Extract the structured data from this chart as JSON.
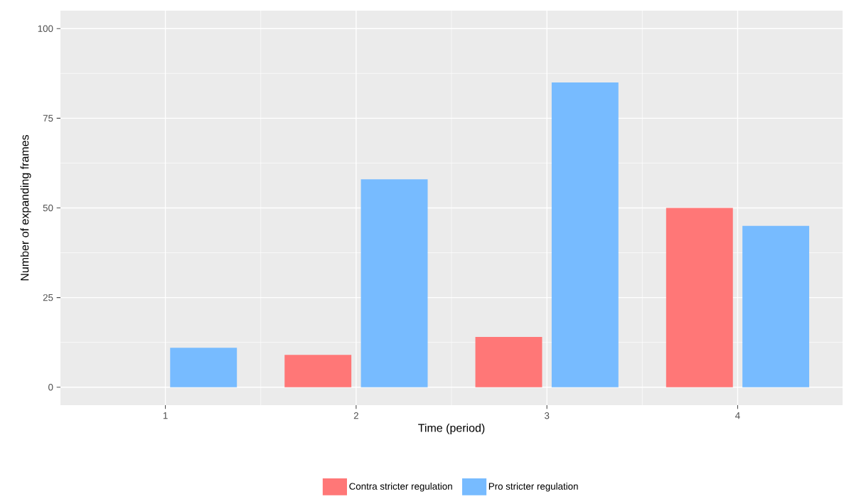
{
  "chart_data": {
    "type": "bar",
    "xlabel": "Time (period)",
    "ylabel": "Number of expanding frames",
    "x": [
      1,
      2,
      3,
      4
    ],
    "series": [
      {
        "name": "Contra stricter regulation",
        "color": "#ff7777",
        "values": [
          null,
          9,
          14,
          50
        ]
      },
      {
        "name": "Pro stricter regulation",
        "color": "#77bbff",
        "values": [
          11,
          58,
          85,
          45
        ]
      }
    ],
    "xlim": [
      0.45,
      4.55
    ],
    "xticks": [
      1,
      2,
      3,
      4
    ],
    "ylim": [
      -5,
      105
    ],
    "yticks": [
      0,
      25,
      50,
      75,
      100
    ],
    "grid": true,
    "legend": "bottom"
  }
}
